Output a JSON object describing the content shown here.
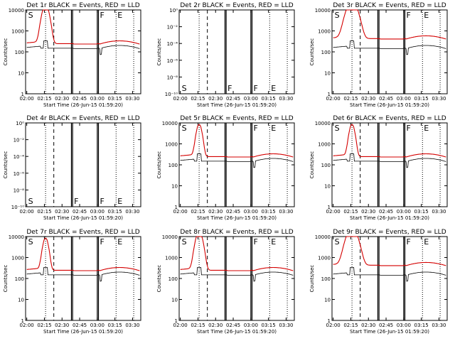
{
  "chart_data": [
    {
      "type": "line",
      "title": "Det 1r BLACK = Events, RED = LLD",
      "xlabel": "Start Time (26-Jun-15 01:59:20)",
      "ylabel": "Counts/sec",
      "x_ticks": [
        "02:00",
        "02:15",
        "02:30",
        "02:45",
        "03:00",
        "03:15",
        "03:30"
      ],
      "y_ticks": [
        "1",
        "10",
        "100",
        "1000",
        "10000"
      ],
      "ylim": [
        1,
        12000
      ],
      "yscale": "log",
      "has_data": true,
      "red_style": "clipped",
      "markers": [
        "S",
        "F",
        "E"
      ],
      "dashed_x": "02:23",
      "dotted_x": [
        "02:16",
        "03:16",
        "03:31"
      ],
      "solid_x": [
        "02:38",
        "02:39",
        "03:00",
        "03:01"
      ]
    },
    {
      "type": "line",
      "title": "Det 2r BLACK = Events, RED = LLD",
      "xlabel": "Start Time (26-Jun-15 01:59:20)",
      "ylabel": "Counts/sec",
      "x_ticks": [
        "02:00",
        "02:15",
        "02:30",
        "02:45",
        "03:00",
        "03:15",
        "03:30"
      ],
      "y_ticks": [
        "10⁻¹⁰",
        "10⁻⁸",
        "10⁻⁶",
        "10⁻⁴",
        "10⁻²",
        "10⁰"
      ],
      "ylim": [
        1e-10,
        1
      ],
      "yscale": "log",
      "has_data": false,
      "markers": [
        "S",
        "F",
        "F",
        "E"
      ],
      "dashed_x": "02:23",
      "dotted_x": [
        "02:16",
        "03:16",
        "03:31"
      ],
      "solid_x": [
        "02:38",
        "02:39",
        "03:00",
        "03:01"
      ]
    },
    {
      "type": "line",
      "title": "Det 3r BLACK = Events, RED = LLD",
      "xlabel": "Start Time (26-Jun-15 01:59:20)",
      "ylabel": "Counts/sec",
      "x_ticks": [
        "02:00",
        "02:15",
        "02:30",
        "02:45",
        "03:00",
        "03:15",
        "03:30"
      ],
      "y_ticks": [
        "1",
        "10",
        "100",
        "1000",
        "10000"
      ],
      "ylim": [
        1,
        12000
      ],
      "yscale": "log",
      "has_data": true,
      "red_style": "high",
      "markers": [
        "S",
        "F",
        "E"
      ],
      "dashed_x": "02:23",
      "dotted_x": [
        "02:16",
        "03:16",
        "03:31"
      ],
      "solid_x": [
        "02:38",
        "02:39",
        "03:00",
        "03:01"
      ]
    },
    {
      "type": "line",
      "title": "Det 4r BLACK = Events, RED = LLD",
      "xlabel": "Start Time (26-Jun-15 01:59:20)",
      "ylabel": "Counts/sec",
      "x_ticks": [
        "02:00",
        "02:15",
        "02:30",
        "02:45",
        "03:00",
        "03:15",
        "03:30"
      ],
      "y_ticks": [
        "10⁻¹⁰",
        "10⁻⁸",
        "10⁻⁶",
        "10⁻⁴",
        "10⁻²",
        "10⁰"
      ],
      "ylim": [
        1e-10,
        1
      ],
      "yscale": "log",
      "has_data": false,
      "markers": [
        "S",
        "F",
        "F",
        "E"
      ],
      "dashed_x": "02:23",
      "dotted_x": [
        "02:16",
        "03:16",
        "03:31"
      ],
      "solid_x": [
        "02:38",
        "02:39",
        "03:00",
        "03:01"
      ]
    },
    {
      "type": "line",
      "title": "Det 5r BLACK = Events, RED = LLD",
      "xlabel": "Start Time (26-Jun-15 01:59:20)",
      "ylabel": "Counts/sec",
      "x_ticks": [
        "02:00",
        "02:15",
        "02:30",
        "02:45",
        "03:00",
        "03:15",
        "03:30"
      ],
      "y_ticks": [
        "1",
        "10",
        "100",
        "1000",
        "10000"
      ],
      "ylim": [
        1,
        12000
      ],
      "yscale": "log",
      "has_data": true,
      "red_style": "peak",
      "markers": [
        "S",
        "F",
        "E"
      ],
      "dashed_x": "02:23",
      "dotted_x": [
        "02:16",
        "03:16",
        "03:31"
      ],
      "solid_x": [
        "02:38",
        "02:39",
        "03:00",
        "03:01"
      ]
    },
    {
      "type": "line",
      "title": "Det 6r BLACK = Events, RED = LLD",
      "xlabel": "Start Time (26-Jun-15 01:59:20)",
      "ylabel": "Counts/sec",
      "x_ticks": [
        "02:00",
        "02:15",
        "02:30",
        "02:45",
        "03:00",
        "03:15",
        "03:30"
      ],
      "y_ticks": [
        "1",
        "10",
        "100",
        "1000",
        "10000"
      ],
      "ylim": [
        1,
        12000
      ],
      "yscale": "log",
      "has_data": true,
      "red_style": "peak",
      "markers": [
        "S",
        "F",
        "E"
      ],
      "dashed_x": "02:23",
      "dotted_x": [
        "02:16",
        "03:16",
        "03:31"
      ],
      "solid_x": [
        "02:38",
        "02:39",
        "03:00",
        "03:01"
      ]
    },
    {
      "type": "line",
      "title": "Det 7r BLACK = Events, RED = LLD",
      "xlabel": "Start Time (26-Jun-15 01:59:20)",
      "ylabel": "Counts/sec",
      "x_ticks": [
        "02:00",
        "02:15",
        "02:30",
        "02:45",
        "03:00",
        "03:15",
        "03:30"
      ],
      "y_ticks": [
        "1",
        "10",
        "100",
        "1000",
        "10000"
      ],
      "ylim": [
        1,
        12000
      ],
      "yscale": "log",
      "has_data": true,
      "red_style": "peak",
      "markers": [
        "S",
        "F",
        "E"
      ],
      "dashed_x": "02:23",
      "dotted_x": [
        "02:16",
        "03:16",
        "03:31"
      ],
      "solid_x": [
        "02:38",
        "02:39",
        "03:00",
        "03:01"
      ]
    },
    {
      "type": "line",
      "title": "Det 8r BLACK = Events, RED = LLD",
      "xlabel": "Start Time (26-Jun-15 01:59:20)",
      "ylabel": "Counts/sec",
      "x_ticks": [
        "02:00",
        "02:15",
        "02:30",
        "02:45",
        "03:00",
        "03:15",
        "03:30"
      ],
      "y_ticks": [
        "1",
        "10",
        "100",
        "1000",
        "10000"
      ],
      "ylim": [
        1,
        12000
      ],
      "yscale": "log",
      "has_data": true,
      "red_style": "clipped",
      "markers": [
        "S",
        "F",
        "E"
      ],
      "dashed_x": "02:23",
      "dotted_x": [
        "02:16",
        "03:16",
        "03:31"
      ],
      "solid_x": [
        "02:38",
        "02:39",
        "03:00",
        "03:01"
      ]
    },
    {
      "type": "line",
      "title": "Det 9r BLACK = Events, RED = LLD",
      "xlabel": "Start Time (26-Jun-15 01:59:20)",
      "ylabel": "Counts/sec",
      "x_ticks": [
        "02:00",
        "02:15",
        "02:30",
        "02:45",
        "03:00",
        "03:15",
        "03:30"
      ],
      "y_ticks": [
        "1",
        "10",
        "100",
        "1000",
        "10000"
      ],
      "ylim": [
        1,
        12000
      ],
      "yscale": "log",
      "has_data": true,
      "red_style": "high",
      "markers": [
        "S",
        "F",
        "E"
      ],
      "dashed_x": "02:23",
      "dotted_x": [
        "02:16",
        "03:16",
        "03:31"
      ],
      "solid_x": [
        "02:38",
        "02:39",
        "03:00",
        "03:01"
      ]
    }
  ],
  "colors": {
    "events": "#000000",
    "lld": "#d40000",
    "axis": "#000000",
    "background": "#ffffff"
  }
}
